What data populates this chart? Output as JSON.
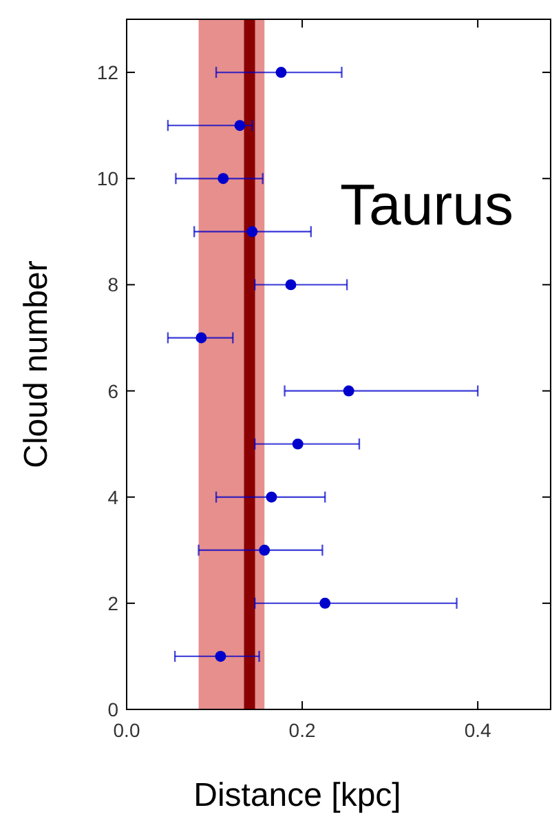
{
  "chart_data": {
    "type": "scatter",
    "xlabel": "Distance [kpc]",
    "ylabel": "Cloud number",
    "annotations": [
      "Taurus"
    ],
    "xlim": [
      0,
      0.483
    ],
    "ylim": [
      0,
      13
    ],
    "xticks": [
      {
        "value": 0,
        "label": "0.0"
      },
      {
        "value": 0.2,
        "label": "0.2"
      },
      {
        "value": 0.4,
        "label": "0.4"
      }
    ],
    "yticks": [
      0,
      2,
      4,
      6,
      8,
      10,
      12
    ],
    "grid": false,
    "marker": "circle",
    "series": [
      {
        "color": "#0000cc",
        "x": [
          0.107,
          0.226,
          0.157,
          0.165,
          0.195,
          0.253,
          0.085,
          0.187,
          0.143,
          0.11,
          0.129,
          0.176
        ],
        "values": [
          1,
          2,
          3,
          4,
          5,
          6,
          7,
          8,
          9,
          10,
          11,
          12
        ],
        "xerrors": [
          [
            0.055,
            0.151
          ],
          [
            0.146,
            0.376
          ],
          [
            0.082,
            0.223
          ],
          [
            0.102,
            0.226
          ],
          [
            0.146,
            0.265
          ],
          [
            0.18,
            0.4
          ],
          [
            0.047,
            0.121
          ],
          [
            0.146,
            0.251
          ],
          [
            0.077,
            0.21
          ],
          [
            0.056,
            0.155
          ],
          [
            0.047,
            0.143
          ],
          [
            0.102,
            0.245
          ]
        ]
      }
    ],
    "bands": [
      {
        "axis": "x",
        "from": 0.082,
        "to": 0.157,
        "color": "#d9534f"
      }
    ],
    "ref_lines": [
      {
        "axis": "x",
        "value": 0.14,
        "color": "#8b0000"
      }
    ]
  }
}
